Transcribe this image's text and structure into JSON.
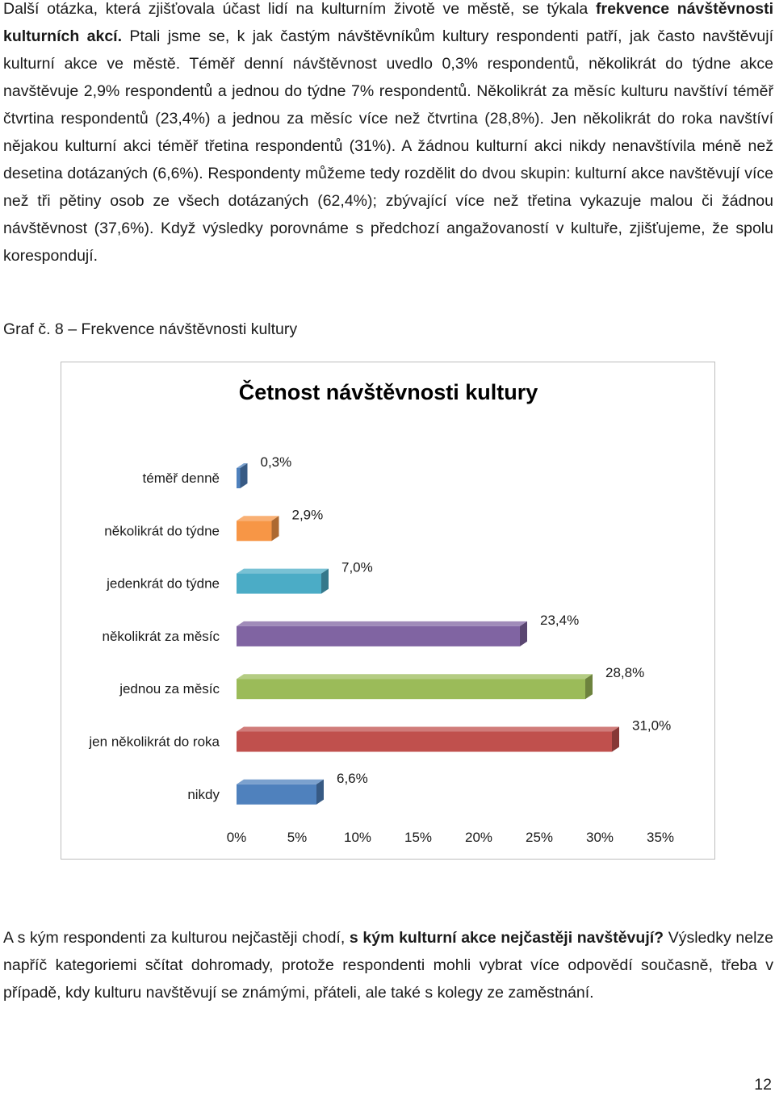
{
  "paragraph1": {
    "intro": "Další otázka, která zjišťovala účast lidí na kulturním životě ve městě, se týkala ",
    "bold": "frekvence návštěvnosti kulturních akcí.",
    "rest": " Ptali jsme se, k jak častým návštěvníkům kultury respondenti patří, jak často navštěvují kulturní akce ve městě. Téměř denní návštěvnost uvedlo 0,3% respondentů, několikrát do týdne akce navštěvuje 2,9% respondentů a jednou do týdne 7% respondentů. Několikrát za měsíc kulturu navštíví téměř čtvrtina respondentů (23,4%) a jednou za měsíc více než čtvrtina (28,8%). Jen několikrát do roka navštíví nějakou kulturní akci téměř třetina respondentů (31%). A žádnou kulturní akci nikdy nenavštívila méně než desetina dotázaných (6,6%). Respondenty můžeme tedy rozdělit do dvou skupin: kulturní akce navštěvují více než tři pětiny osob ze všech dotázaných (62,4%); zbývající více než třetina vykazuje malou či žádnou návštěvnost (37,6%). Když výsledky porovnáme s předchozí angažovaností v kultuře, zjišťujeme, že spolu korespondují."
  },
  "caption": "Graf č. 8 – Frekvence návštěvnosti kultury",
  "chart_data": {
    "type": "bar",
    "orientation": "horizontal",
    "title": "Četnost návštěvnosti kultury",
    "categories": [
      "téměř denně",
      "několikrát do týdne",
      "jedenkrát do týdne",
      "několikrát za měsíc",
      "jednou za měsíc",
      "jen několikrát do roka",
      "nikdy"
    ],
    "values": [
      0.3,
      2.9,
      7.0,
      23.4,
      28.8,
      31.0,
      6.6
    ],
    "value_labels": [
      "0,3%",
      "2,9%",
      "7,0%",
      "23,4%",
      "28,8%",
      "31,0%",
      "6,6%"
    ],
    "colors": [
      "#4f81bd",
      "#f79646",
      "#4bacc6",
      "#8064a2",
      "#9bbb59",
      "#c0504d",
      "#4f81bd"
    ],
    "xlim": [
      0,
      35
    ],
    "xticks": [
      "0%",
      "5%",
      "10%",
      "15%",
      "20%",
      "25%",
      "30%",
      "35%"
    ],
    "xlabel": "",
    "ylabel": "",
    "grid": false,
    "legend": false
  },
  "paragraph2": {
    "intro": "A s kým respondenti za kulturou nejčastěji chodí, ",
    "bold": "s kým kulturní akce nejčastěji navštěvují?",
    "rest": " Výsledky nelze napříč kategoriemi sčítat dohromady, protože respondenti mohli vybrat více odpovědí současně, třeba v případě, kdy kulturu navštěvují se známými, přáteli, ale také s kolegy ze zaměstnání."
  },
  "page_number": "12"
}
